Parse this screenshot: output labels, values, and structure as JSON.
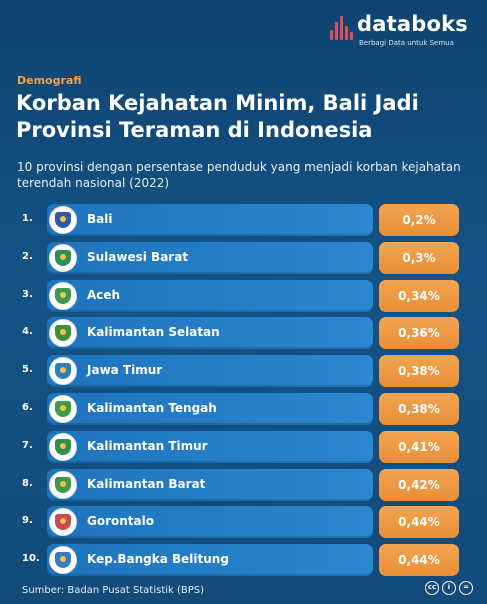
{
  "brand": {
    "name": "databoks",
    "tagline": "Berbagi Data untuk Semua",
    "accent": "#e04e5b"
  },
  "category": "Demografi",
  "title": "Korban Kejahatan Minim, Bali Jadi Provinsi Teraman di Indonesia",
  "subtitle": "10 provinsi dengan persentase penduduk yang menjadi korban kejahatan terendah nasional (2022)",
  "source": "Sumber: Badan Pusat Statistik (BPS)",
  "license_icons": [
    "cc-icon",
    "by-icon",
    "nd-icon"
  ],
  "colors": {
    "background": "#145285",
    "bar": "#2a87d0",
    "value_box": "#ee9a42",
    "category": "#f4a04a"
  },
  "chart_data": {
    "type": "table",
    "title": "Korban Kejahatan Minim, Bali Jadi Provinsi Teraman di Indonesia",
    "subtitle": "10 provinsi dengan persentase penduduk yang menjadi korban kejahatan terendah nasional (2022)",
    "ranks": [
      "1.",
      "2.",
      "3.",
      "4.",
      "5.",
      "6.",
      "7.",
      "8.",
      "9.",
      "10."
    ],
    "categories": [
      "Bali",
      "Sulawesi Barat",
      "Aceh",
      "Kalimantan Selatan",
      "Jawa Timur",
      "Kalimantan Tengah",
      "Kalimantan Timur",
      "Kalimantan Barat",
      "Gorontalo",
      "Kep.Bangka Belitung"
    ],
    "values": [
      0.2,
      0.3,
      0.34,
      0.36,
      0.38,
      0.38,
      0.41,
      0.42,
      0.44,
      0.44
    ],
    "value_labels": [
      "0,2%",
      "0,3%",
      "0,34%",
      "0,36%",
      "0,38%",
      "0,38%",
      "0,41%",
      "0,42%",
      "0,44%",
      "0,44%"
    ],
    "emblem_icons": [
      "bali-emblem-icon",
      "sulawesi-barat-emblem-icon",
      "aceh-emblem-icon",
      "kalimantan-selatan-emblem-icon",
      "jawa-timur-emblem-icon",
      "kalimantan-tengah-emblem-icon",
      "kalimantan-timur-emblem-icon",
      "kalimantan-barat-emblem-icon",
      "gorontalo-emblem-icon",
      "bangka-belitung-emblem-icon"
    ],
    "emblem_colors": [
      "#2f56a8",
      "#2e8f5a",
      "#3c9a4a",
      "#3d8f3c",
      "#2b7fbf",
      "#3f9d4a",
      "#2f8f4f",
      "#3c9a4a",
      "#c64b56",
      "#3a78c4"
    ]
  }
}
